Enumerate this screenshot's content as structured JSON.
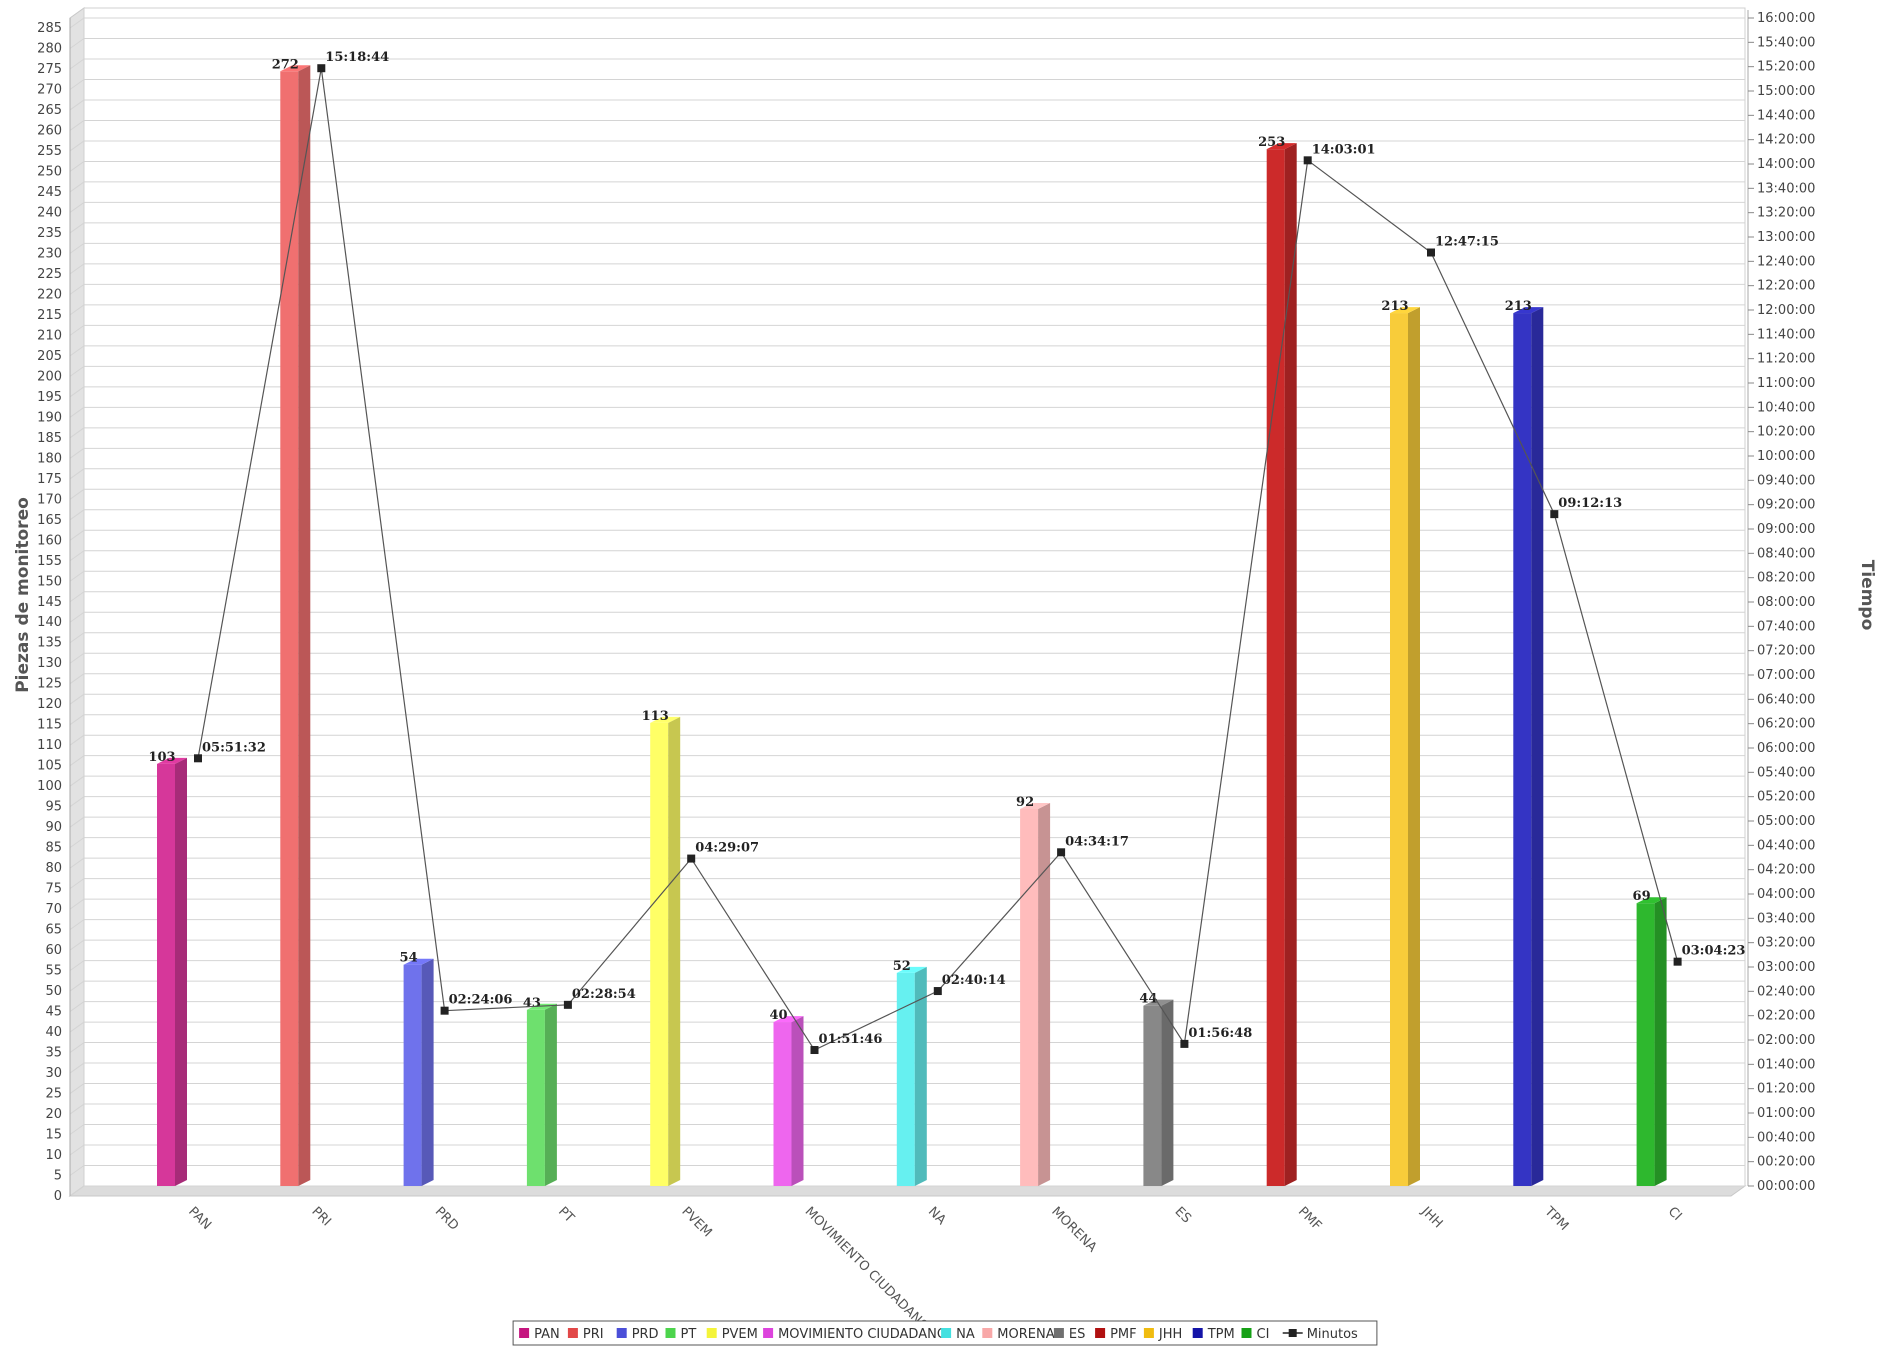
{
  "chart_data": {
    "type": "bar",
    "categories": [
      "PAN",
      "PRI",
      "PRD",
      "PT",
      "PVEM",
      "MOVIMIENTO CIUDADANO",
      "NA",
      "MORENA",
      "ES",
      "PMF",
      "JHH",
      "TPM",
      "CI"
    ],
    "values": [
      103,
      272,
      54,
      43,
      113,
      40,
      52,
      92,
      44,
      253,
      213,
      213,
      69
    ],
    "value_labels": [
      "103",
      "272",
      "54",
      "43",
      "113",
      "40",
      "52",
      "92",
      "44",
      "253",
      "213",
      "213",
      "69"
    ],
    "colors": [
      "#d6379a",
      "#f07070",
      "#6f72ec",
      "#6ee06e",
      "#ffff66",
      "#ee66ee",
      "#66f0f0",
      "#ffbcbc",
      "#888888",
      "#cc2a2a",
      "#f8cc3a",
      "#3434c4",
      "#2eb82e"
    ],
    "ylabel": "Piezas de monitoreo",
    "ylim": [
      0,
      285
    ],
    "yticks_step": 5,
    "y2label": "Tiempo",
    "y2lim_seconds": [
      0,
      57600
    ],
    "y2ticks_step_seconds": 1200,
    "line_series": {
      "name": "Minutos",
      "color": "#222222",
      "values_seconds": [
        21092,
        55124,
        8646,
        8934,
        16147,
        6706,
        9614,
        16457,
        7008,
        50581,
        46035,
        33133,
        11063
      ],
      "labels": [
        "05:51:32",
        "15:18:44",
        "02:24:06",
        "02:28:54",
        "04:29:07",
        "01:51:46",
        "02:40:14",
        "04:34:17",
        "01:56:48",
        "14:03:01",
        "12:47:15",
        "09:12:13",
        "03:04:23"
      ]
    },
    "legend": {
      "position": "bottom",
      "items": [
        {
          "label": "PAN",
          "color": "#c5157f"
        },
        {
          "label": "PRI",
          "color": "#e24848"
        },
        {
          "label": "PRD",
          "color": "#4b4fd8"
        },
        {
          "label": "PT",
          "color": "#4cd44c"
        },
        {
          "label": "PVEM",
          "color": "#f4f43a"
        },
        {
          "label": "MOVIMIENTO CIUDADANO",
          "color": "#dd44dd"
        },
        {
          "label": "NA",
          "color": "#44e0e0"
        },
        {
          "label": "MORENA",
          "color": "#f8a8a8"
        },
        {
          "label": "ES",
          "color": "#707070"
        },
        {
          "label": "PMF",
          "color": "#b01010"
        },
        {
          "label": "JHH",
          "color": "#f0bc10"
        },
        {
          "label": "TPM",
          "color": "#1414a8"
        },
        {
          "label": "CI",
          "color": "#16a016"
        },
        {
          "label": "Minutos",
          "color": "#222222",
          "marker": "line"
        }
      ]
    },
    "grid": true
  }
}
